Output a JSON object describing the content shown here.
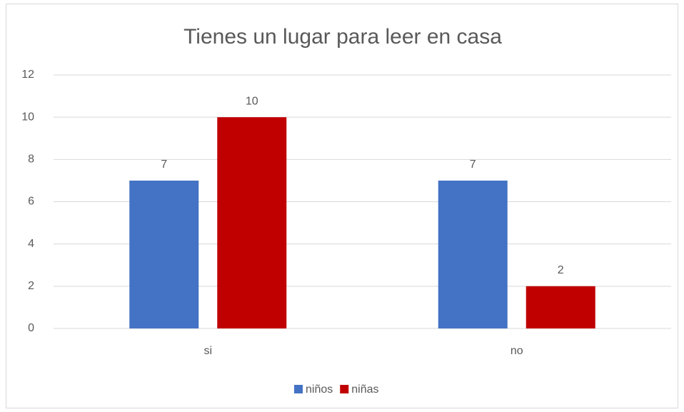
{
  "chart_data": {
    "type": "bar",
    "title": "Tienes un lugar para leer en casa",
    "categories": [
      "si",
      "no"
    ],
    "series": [
      {
        "name": "niños",
        "color": "#4472c4",
        "values": [
          7,
          7
        ]
      },
      {
        "name": "niñas",
        "color": "#c00000",
        "values": [
          10,
          2
        ]
      }
    ],
    "ylim": [
      0,
      12
    ],
    "yticks": [
      0,
      2,
      4,
      6,
      8,
      10,
      12
    ],
    "grid": true,
    "legend": "bottom"
  }
}
